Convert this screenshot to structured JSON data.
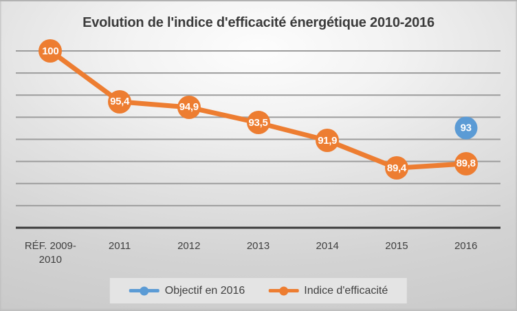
{
  "title": "Evolution de l'indice d'efficacité énergétique 2010-2016",
  "chart_data": {
    "type": "line",
    "categories": [
      "RÉF. 2009-2010",
      "2011",
      "2012",
      "2013",
      "2014",
      "2015",
      "2016"
    ],
    "series": [
      {
        "name": "Objectif en 2016",
        "color": "#5B9BD5",
        "values": [
          null,
          null,
          null,
          null,
          null,
          null,
          93
        ],
        "labels": [
          null,
          null,
          null,
          null,
          null,
          null,
          "93"
        ],
        "draw_line": false,
        "marker_size": 33
      },
      {
        "name": "Indice d'efficacité",
        "color": "#ED7D31",
        "values": [
          100,
          95.4,
          94.9,
          93.5,
          91.9,
          89.4,
          89.8
        ],
        "labels": [
          "100",
          "95,4",
          "94,9",
          "93,5",
          "91,9",
          "89,4",
          "89,8"
        ],
        "draw_line": true,
        "marker_size": 34
      }
    ],
    "ylim": [
      84,
      100
    ],
    "y_major_unit": 2,
    "grid": true,
    "y_axis_labels_visible": false,
    "data_labels_position": "center-of-marker",
    "legend_position": "bottom"
  },
  "colors": {
    "gridline": "#9c9c9c",
    "axis_line": "#3a3a3a",
    "text": "#3f3f3f",
    "data_label_text": "#ffffff",
    "legend_background": "#e4e4e4"
  }
}
